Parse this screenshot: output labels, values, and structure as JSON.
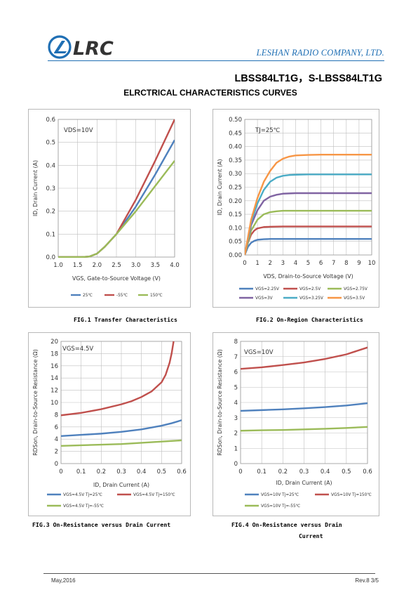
{
  "header": {
    "company": "LESHAN RADIO COMPANY, LTD.",
    "part": "LBSS84LT1G，S-LBSS84LT1G",
    "section": "ELRCTRICAL CHARACTERISTICS CURVES",
    "logo_text": "LRC",
    "brand_color": "#1f6fb4"
  },
  "captions": {
    "fig1": "FIG.1 Transfer Characteristics",
    "fig2": "FIG.2 On-Region Characteristics",
    "fig3": "FIG.3 On-Resistance versus Drain Current",
    "fig4_l1": "FIG.4 On-Resistance versus Drain",
    "fig4_l2": "Current"
  },
  "footer": {
    "date": "May,2016",
    "rev": "Rev.8 3/5"
  },
  "chart_data": [
    {
      "id": "fig1",
      "type": "line",
      "annotation": "VDS=10V",
      "xlabel": "VGS, Gate-to-Source Voltage (V)",
      "ylabel": "ID, Drain Current (A)",
      "xlim": [
        1.0,
        4.0
      ],
      "ylim": [
        0,
        0.6
      ],
      "xticks": [
        "1.0",
        "1.5",
        "2.0",
        "2.5",
        "3.0",
        "3.5",
        "4.0"
      ],
      "yticks": [
        "0.0",
        "0.1",
        "0.2",
        "0.3",
        "0.4",
        "0.5",
        "0.6"
      ],
      "legend_position": "bottom",
      "series": [
        {
          "name": "25℃",
          "color": "#4f81bd",
          "x": [
            1.0,
            1.6,
            1.8,
            2.0,
            2.2,
            2.5,
            3.0,
            3.5,
            4.0
          ],
          "y": [
            0,
            0,
            0.002,
            0.015,
            0.045,
            0.1,
            0.22,
            0.36,
            0.51
          ]
        },
        {
          "name": "-55℃",
          "color": "#c0504d",
          "x": [
            1.0,
            1.6,
            1.8,
            2.0,
            2.2,
            2.5,
            3.0,
            3.5,
            4.0
          ],
          "y": [
            0,
            0,
            0.002,
            0.015,
            0.045,
            0.1,
            0.25,
            0.42,
            0.6
          ]
        },
        {
          "name": "150℃",
          "color": "#9bbb59",
          "x": [
            1.0,
            1.6,
            1.8,
            2.0,
            2.2,
            2.5,
            3.0,
            3.5,
            4.0
          ],
          "y": [
            0,
            0,
            0.002,
            0.015,
            0.045,
            0.1,
            0.2,
            0.31,
            0.42
          ]
        }
      ]
    },
    {
      "id": "fig2",
      "type": "line",
      "annotation": "TJ=25℃",
      "xlabel": "VDS, Drain-to-Source Voltage (V)",
      "ylabel": "ID, Drain Current (A)",
      "xlim": [
        0,
        10
      ],
      "ylim": [
        0,
        0.5
      ],
      "xticks": [
        "0",
        "1",
        "2",
        "3",
        "4",
        "5",
        "6",
        "7",
        "8",
        "9",
        "10"
      ],
      "yticks": [
        "0.00",
        "0.05",
        "0.10",
        "0.15",
        "0.20",
        "0.25",
        "0.30",
        "0.35",
        "0.40",
        "0.45",
        "0.50"
      ],
      "legend_position": "bottom",
      "series": [
        {
          "name": "VGS=2.25V",
          "color": "#4f81bd",
          "x": [
            0,
            0.25,
            0.5,
            0.75,
            1,
            1.5,
            2,
            3,
            4,
            6,
            8,
            10
          ],
          "y": [
            0,
            0.03,
            0.045,
            0.052,
            0.056,
            0.058,
            0.059,
            0.059,
            0.059,
            0.059,
            0.059,
            0.059
          ]
        },
        {
          "name": "VGS=2.5V",
          "color": "#c0504d",
          "x": [
            0,
            0.25,
            0.5,
            0.75,
            1,
            1.5,
            2,
            3,
            4,
            6,
            8,
            10
          ],
          "y": [
            0,
            0.045,
            0.075,
            0.09,
            0.098,
            0.103,
            0.104,
            0.105,
            0.105,
            0.105,
            0.105,
            0.105
          ]
        },
        {
          "name": "VGS=2.75V",
          "color": "#9bbb59",
          "x": [
            0,
            0.5,
            1,
            1.5,
            2,
            2.5,
            3,
            4,
            6,
            8,
            10
          ],
          "y": [
            0,
            0.09,
            0.13,
            0.15,
            0.158,
            0.161,
            0.163,
            0.163,
            0.163,
            0.163,
            0.163
          ]
        },
        {
          "name": "VGS=3V",
          "color": "#8064a2",
          "x": [
            0,
            0.5,
            1,
            1.5,
            2,
            2.5,
            3,
            3.5,
            4,
            6,
            8,
            10
          ],
          "y": [
            0,
            0.11,
            0.165,
            0.2,
            0.215,
            0.222,
            0.226,
            0.227,
            0.228,
            0.228,
            0.228,
            0.228
          ]
        },
        {
          "name": "VGS=3.25V",
          "color": "#4bacc6",
          "x": [
            0,
            0.5,
            1,
            1.5,
            2,
            2.5,
            3,
            3.5,
            4,
            5,
            6,
            8,
            10
          ],
          "y": [
            0,
            0.12,
            0.19,
            0.24,
            0.27,
            0.285,
            0.292,
            0.295,
            0.296,
            0.297,
            0.297,
            0.297,
            0.297
          ]
        },
        {
          "name": "VGS=3.5V",
          "color": "#f79646",
          "x": [
            0,
            0.5,
            1,
            1.5,
            2,
            2.5,
            3,
            3.5,
            4,
            4.5,
            5,
            6,
            8,
            10
          ],
          "y": [
            0,
            0.13,
            0.21,
            0.27,
            0.31,
            0.34,
            0.355,
            0.363,
            0.367,
            0.368,
            0.369,
            0.37,
            0.37,
            0.37
          ]
        }
      ]
    },
    {
      "id": "fig3",
      "type": "line",
      "annotation": "VGS=4.5V",
      "xlabel": "ID, Drain Current (A)",
      "ylabel": "RDSon, Drain-to-Source Resistance (Ω)",
      "xlim": [
        0,
        0.6
      ],
      "ylim": [
        0,
        20
      ],
      "xticks": [
        "0",
        "0.1",
        "0.2",
        "0.3",
        "0.4",
        "0.5",
        "0.6"
      ],
      "yticks": [
        "0",
        "2",
        "4",
        "6",
        "8",
        "10",
        "12",
        "14",
        "16",
        "18",
        "20"
      ],
      "legend_position": "bottom",
      "series": [
        {
          "name": "VGS=4.5V Tj=25℃",
          "color": "#4f81bd",
          "x": [
            0,
            0.1,
            0.2,
            0.3,
            0.4,
            0.5,
            0.55,
            0.6
          ],
          "y": [
            4.5,
            4.7,
            4.9,
            5.2,
            5.6,
            6.2,
            6.6,
            7.1
          ]
        },
        {
          "name": "VGS=4.5V Tj=150℃",
          "color": "#c0504d",
          "x": [
            0,
            0.1,
            0.2,
            0.3,
            0.35,
            0.4,
            0.45,
            0.5,
            0.52,
            0.54,
            0.55,
            0.56
          ],
          "y": [
            7.9,
            8.3,
            8.9,
            9.7,
            10.2,
            10.9,
            11.8,
            13.3,
            14.5,
            16.5,
            18.0,
            20.0
          ]
        },
        {
          "name": "VGS=4.5V Tj=-55℃",
          "color": "#9bbb59",
          "x": [
            0,
            0.1,
            0.2,
            0.3,
            0.4,
            0.5,
            0.6
          ],
          "y": [
            2.9,
            3.0,
            3.1,
            3.2,
            3.4,
            3.6,
            3.8
          ]
        }
      ]
    },
    {
      "id": "fig4",
      "type": "line",
      "annotation": "VGS=10V",
      "xlabel": "ID, Drain Current (A)",
      "ylabel": "RDSon, Drain-to-Source Resistance (Ω)",
      "xlim": [
        0,
        0.6
      ],
      "ylim": [
        0,
        8
      ],
      "xticks": [
        "0",
        "0.1",
        "0.2",
        "0.3",
        "0.4",
        "0.5",
        "0.6"
      ],
      "yticks": [
        "0",
        "1",
        "2",
        "3",
        "4",
        "5",
        "6",
        "7",
        "8"
      ],
      "legend_position": "bottom",
      "series": [
        {
          "name": "VGS=10V Tj=25℃",
          "color": "#4f81bd",
          "x": [
            0,
            0.1,
            0.2,
            0.3,
            0.4,
            0.5,
            0.6
          ],
          "y": [
            3.45,
            3.5,
            3.55,
            3.62,
            3.7,
            3.8,
            3.95
          ]
        },
        {
          "name": "VGS=10V Tj=150℃",
          "color": "#c0504d",
          "x": [
            0,
            0.1,
            0.2,
            0.3,
            0.4,
            0.5,
            0.6
          ],
          "y": [
            6.2,
            6.3,
            6.45,
            6.62,
            6.85,
            7.15,
            7.6
          ]
        },
        {
          "name": "VGS=10V Tj=-55℃",
          "color": "#9bbb59",
          "x": [
            0,
            0.1,
            0.2,
            0.3,
            0.4,
            0.5,
            0.6
          ],
          "y": [
            2.15,
            2.18,
            2.2,
            2.24,
            2.28,
            2.33,
            2.4
          ]
        }
      ]
    }
  ]
}
